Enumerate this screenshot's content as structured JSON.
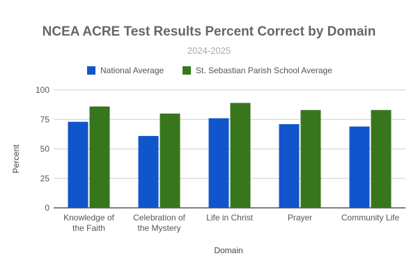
{
  "chart_data": {
    "type": "bar",
    "title": "NCEA ACRE Test Results Percent Correct by Domain",
    "subtitle": "2024-2025",
    "xlabel": "Domain",
    "ylabel": "Percent",
    "ylim": [
      0,
      100
    ],
    "yticks": [
      0,
      25,
      50,
      75,
      100
    ],
    "grid": true,
    "legend_position": "top",
    "categories": [
      [
        "Knowledge of",
        "the Faith"
      ],
      [
        "Celebration of",
        "the Mystery"
      ],
      [
        "Life in Christ"
      ],
      [
        "Prayer"
      ],
      [
        "Community Life"
      ]
    ],
    "series": [
      {
        "name": "National Average",
        "color": "#1155cc",
        "values": [
          73,
          61,
          76,
          71,
          69
        ]
      },
      {
        "name": "St. Sebastian Parish School Average",
        "color": "#38761d",
        "values": [
          86,
          80,
          89,
          83,
          83
        ]
      }
    ]
  }
}
